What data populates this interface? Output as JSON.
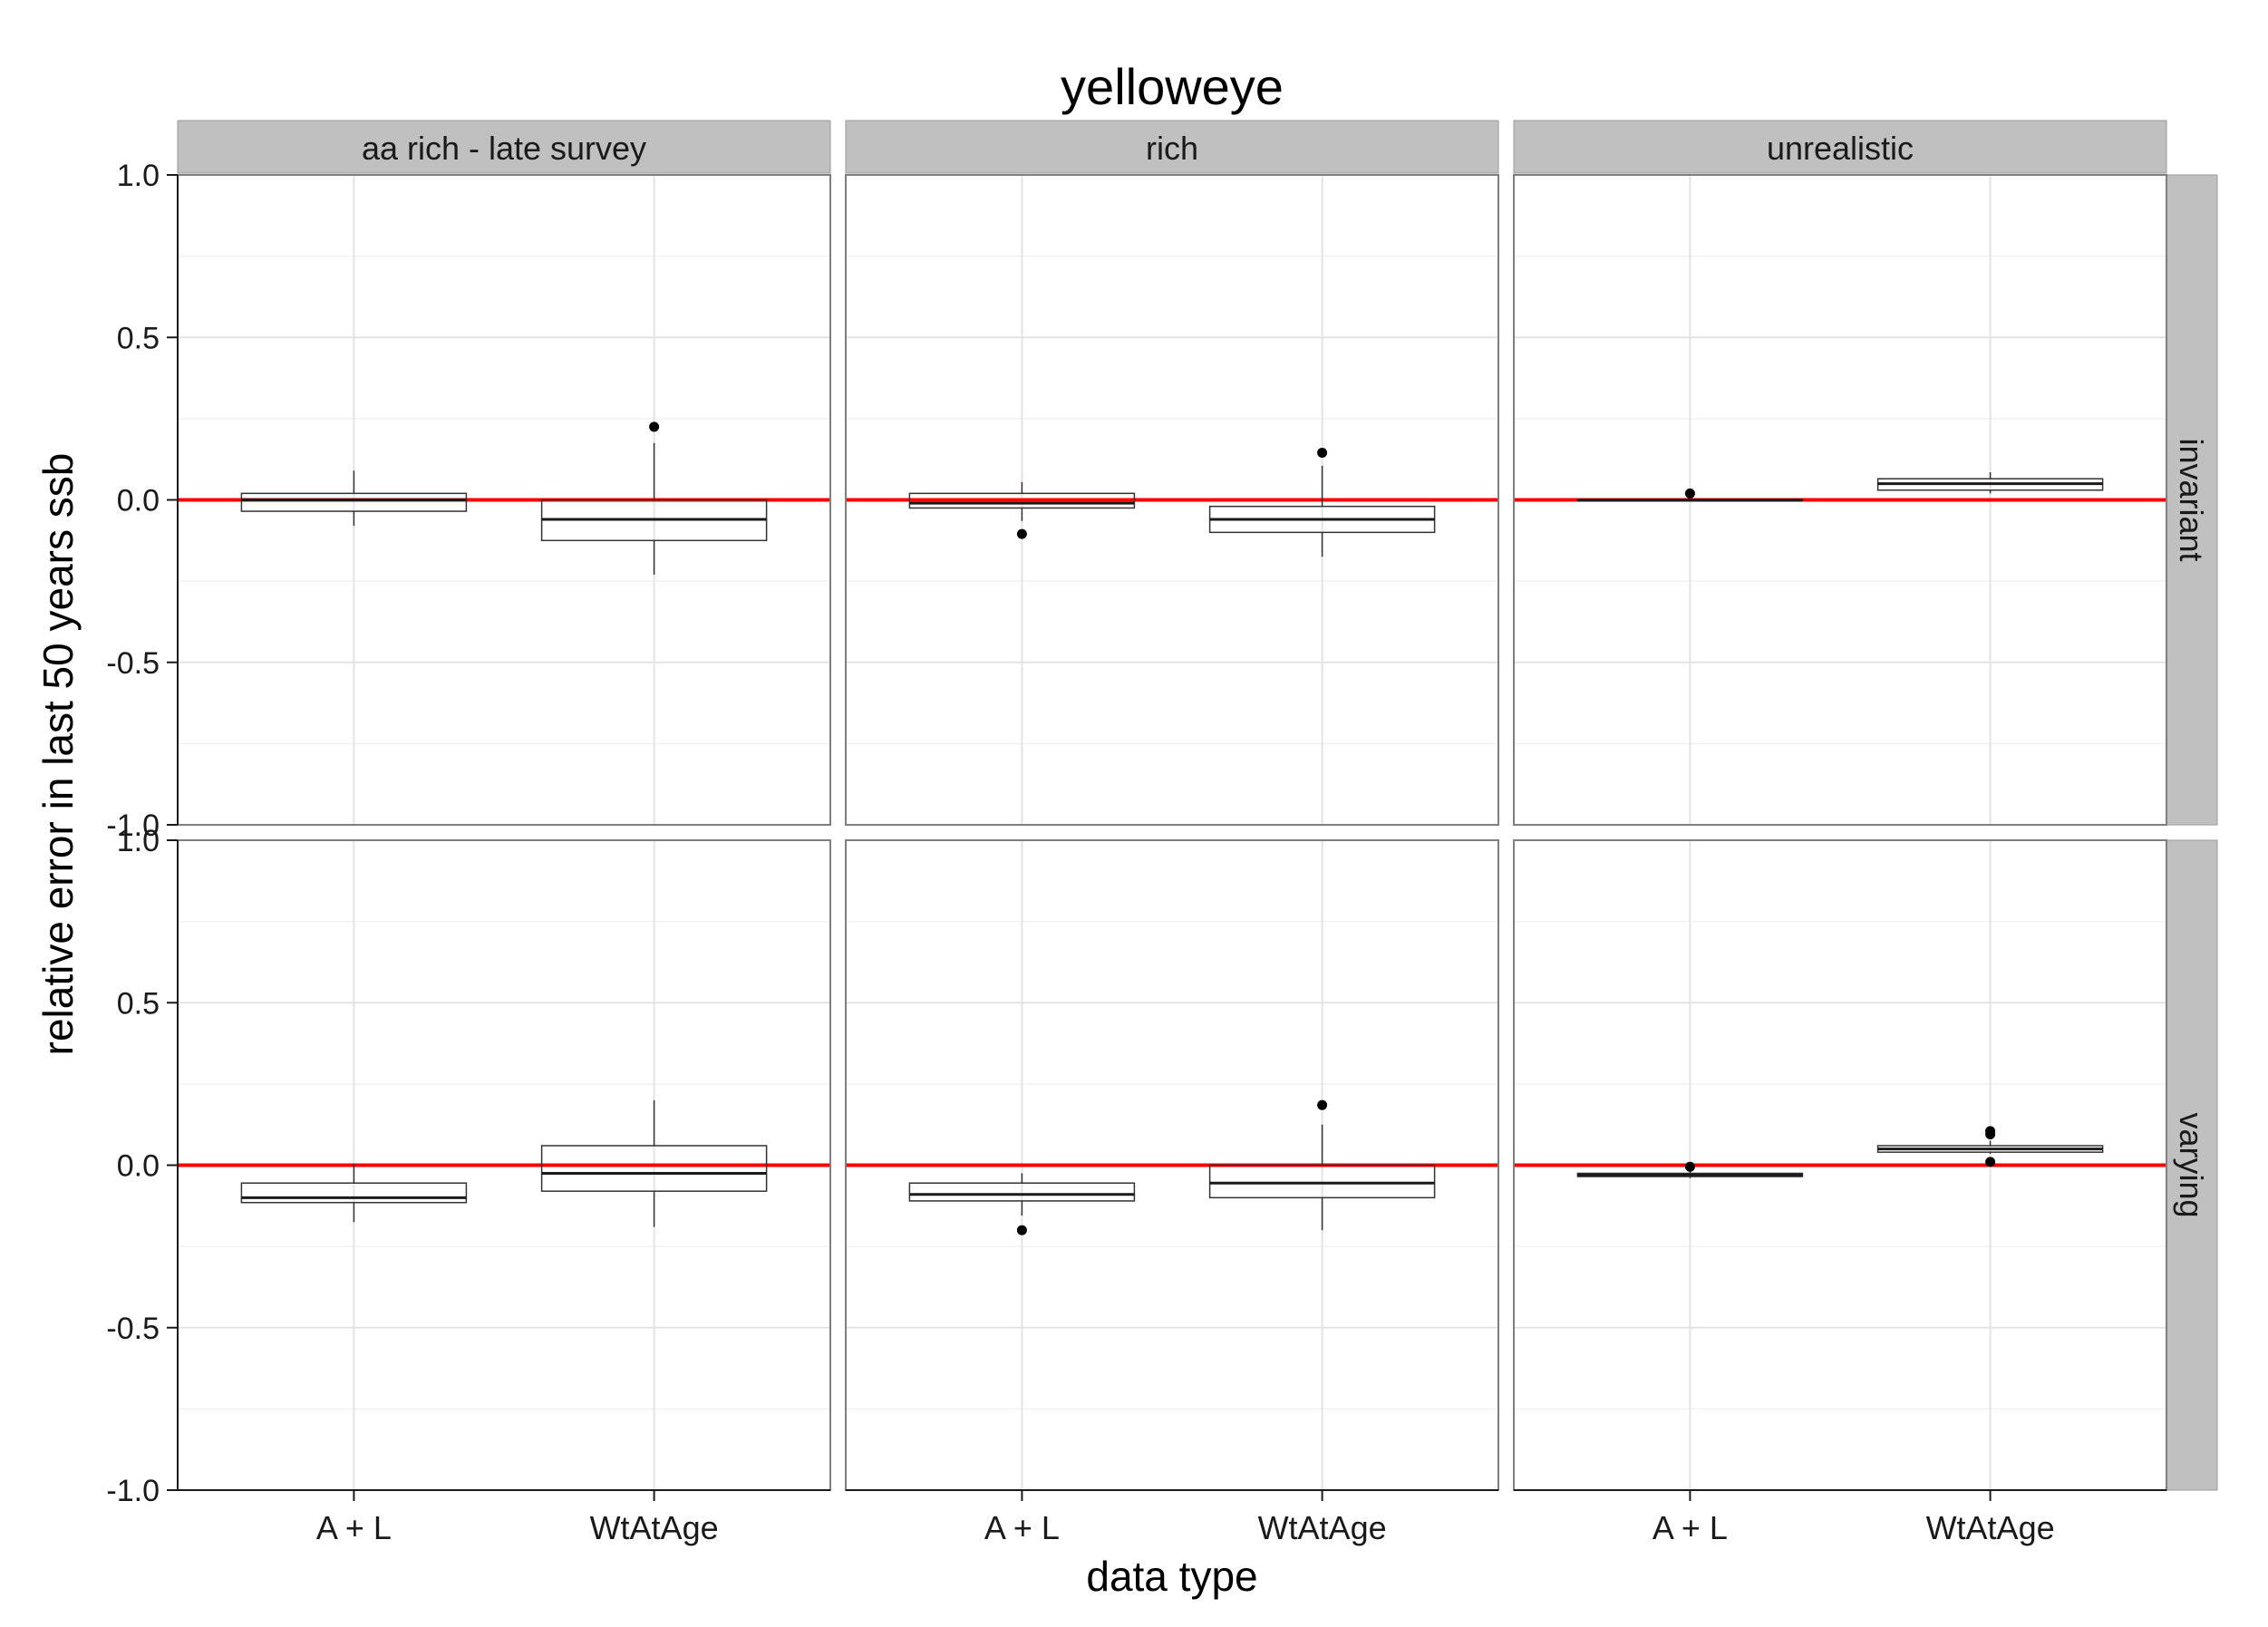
{
  "chart_data": {
    "type": "boxplot",
    "title": "yelloweye",
    "xlabel": "data type",
    "ylabel": "relative error in last 50 years ssb",
    "ylim": [
      -1.0,
      1.0
    ],
    "yticks": [
      "-1.0",
      "-0.5",
      "0.0",
      "0.5",
      "1.0"
    ],
    "categories": [
      "A + L",
      "WtAtAge"
    ],
    "column_facets": [
      "aa rich - late survey",
      "rich",
      "unrealistic"
    ],
    "row_facets": [
      "invariant",
      "varying"
    ],
    "reference_line": {
      "y": 0.0,
      "color": "#ff0000"
    },
    "grid": true,
    "panel_background": "#ffffff",
    "strip_background": "#c0c0c0",
    "panels": [
      {
        "col": "aa rich - late survey",
        "row": "invariant",
        "boxes": [
          {
            "category": "A + L",
            "lower_whisker": -0.08,
            "q1": -0.035,
            "median": 0.0,
            "q3": 0.02,
            "upper_whisker": 0.09,
            "outliers": []
          },
          {
            "category": "WtAtAge",
            "lower_whisker": -0.23,
            "q1": -0.125,
            "median": -0.06,
            "q3": 0.0,
            "upper_whisker": 0.175,
            "outliers": [
              0.225
            ]
          }
        ]
      },
      {
        "col": "rich",
        "row": "invariant",
        "boxes": [
          {
            "category": "A + L",
            "lower_whisker": -0.065,
            "q1": -0.025,
            "median": -0.01,
            "q3": 0.02,
            "upper_whisker": 0.055,
            "outliers": [
              -0.105
            ]
          },
          {
            "category": "WtAtAge",
            "lower_whisker": -0.175,
            "q1": -0.1,
            "median": -0.06,
            "q3": -0.02,
            "upper_whisker": 0.105,
            "outliers": [
              0.145
            ]
          }
        ]
      },
      {
        "col": "unrealistic",
        "row": "invariant",
        "boxes": [
          {
            "category": "A + L",
            "lower_whisker": -0.005,
            "q1": -0.003,
            "median": -0.001,
            "q3": 0.001,
            "upper_whisker": 0.01,
            "outliers": [
              0.02
            ]
          },
          {
            "category": "WtAtAge",
            "lower_whisker": 0.02,
            "q1": 0.03,
            "median": 0.05,
            "q3": 0.065,
            "upper_whisker": 0.085,
            "outliers": []
          }
        ]
      },
      {
        "col": "aa rich - late survey",
        "row": "varying",
        "boxes": [
          {
            "category": "A + L",
            "lower_whisker": -0.175,
            "q1": -0.115,
            "median": -0.1,
            "q3": -0.055,
            "upper_whisker": 0.005,
            "outliers": []
          },
          {
            "category": "WtAtAge",
            "lower_whisker": -0.19,
            "q1": -0.08,
            "median": -0.025,
            "q3": 0.06,
            "upper_whisker": 0.2,
            "outliers": []
          }
        ]
      },
      {
        "col": "rich",
        "row": "varying",
        "boxes": [
          {
            "category": "A + L",
            "lower_whisker": -0.155,
            "q1": -0.11,
            "median": -0.09,
            "q3": -0.055,
            "upper_whisker": -0.025,
            "outliers": [
              -0.2
            ]
          },
          {
            "category": "WtAtAge",
            "lower_whisker": -0.2,
            "q1": -0.1,
            "median": -0.055,
            "q3": 0.0,
            "upper_whisker": 0.125,
            "outliers": [
              0.185
            ]
          }
        ]
      },
      {
        "col": "unrealistic",
        "row": "varying",
        "boxes": [
          {
            "category": "A + L",
            "lower_whisker": -0.04,
            "q1": -0.035,
            "median": -0.03,
            "q3": -0.025,
            "upper_whisker": -0.01,
            "outliers": [
              -0.005
            ]
          },
          {
            "category": "WtAtAge",
            "lower_whisker": 0.035,
            "q1": 0.04,
            "median": 0.05,
            "q3": 0.06,
            "upper_whisker": 0.075,
            "outliers": [
              0.01,
              0.095,
              0.105
            ]
          }
        ]
      }
    ]
  }
}
